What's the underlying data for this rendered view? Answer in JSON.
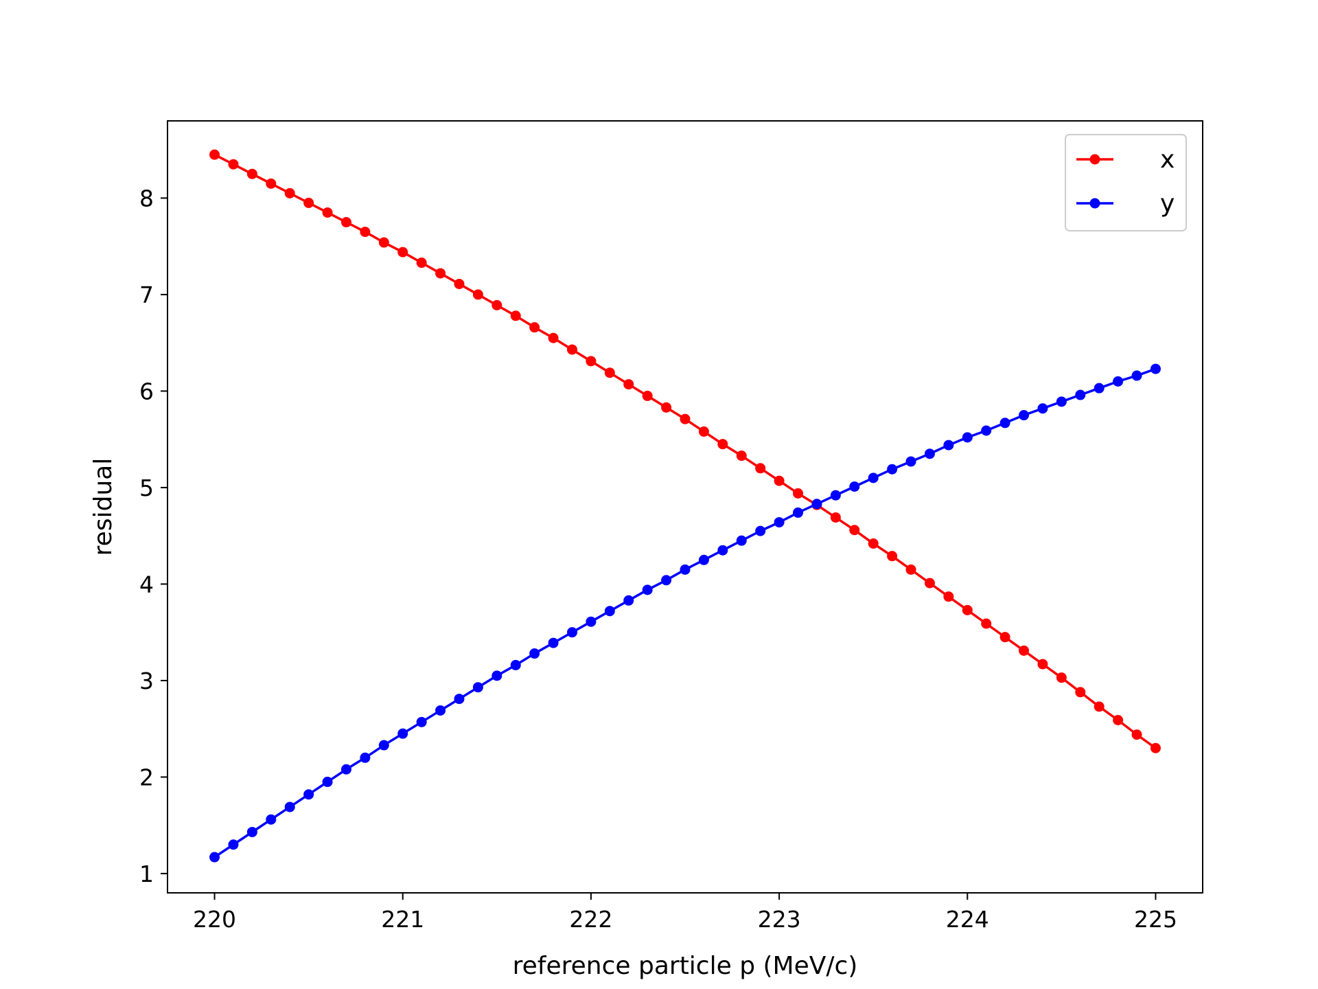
{
  "chart_data": {
    "type": "line",
    "title": "",
    "xlabel": "reference particle p (MeV/c)",
    "ylabel": "residual",
    "xlim": [
      219.75,
      225.25
    ],
    "ylim": [
      0.8,
      8.8
    ],
    "xticks": [
      220,
      221,
      222,
      223,
      224,
      225
    ],
    "yticks": [
      1,
      2,
      3,
      4,
      5,
      6,
      7,
      8
    ],
    "grid": false,
    "legend": "top-right",
    "series": [
      {
        "name": "x",
        "color": "#ff0000",
        "marker": "circle",
        "x": [
          220.0,
          220.1,
          220.2,
          220.3,
          220.4,
          220.5,
          220.6,
          220.7,
          220.8,
          220.9,
          221.0,
          221.1,
          221.2,
          221.3,
          221.4,
          221.5,
          221.6,
          221.7,
          221.8,
          221.9,
          222.0,
          222.1,
          222.2,
          222.3,
          222.4,
          222.5,
          222.6,
          222.7,
          222.8,
          222.9,
          223.0,
          223.1,
          223.2,
          223.3,
          223.4,
          223.5,
          223.6,
          223.7,
          223.8,
          223.9,
          224.0,
          224.1,
          224.2,
          224.3,
          224.4,
          224.5,
          224.6,
          224.7,
          224.8,
          224.9,
          225.0
        ],
        "y": [
          8.45,
          8.35,
          8.25,
          8.15,
          8.05,
          7.95,
          7.85,
          7.75,
          7.65,
          7.54,
          7.44,
          7.33,
          7.22,
          7.11,
          7.0,
          6.89,
          6.78,
          6.66,
          6.55,
          6.43,
          6.31,
          6.19,
          6.07,
          5.95,
          5.83,
          5.71,
          5.58,
          5.45,
          5.33,
          5.2,
          5.07,
          4.94,
          4.82,
          4.69,
          4.56,
          4.42,
          4.29,
          4.15,
          4.01,
          3.87,
          3.73,
          3.59,
          3.45,
          3.31,
          3.17,
          3.03,
          2.88,
          2.73,
          2.59,
          2.44,
          2.3
        ]
      },
      {
        "name": "y",
        "color": "#0000ff",
        "marker": "circle",
        "x": [
          220.0,
          220.1,
          220.2,
          220.3,
          220.4,
          220.5,
          220.6,
          220.7,
          220.8,
          220.9,
          221.0,
          221.1,
          221.2,
          221.3,
          221.4,
          221.5,
          221.6,
          221.7,
          221.8,
          221.9,
          222.0,
          222.1,
          222.2,
          222.3,
          222.4,
          222.5,
          222.6,
          222.7,
          222.8,
          222.9,
          223.0,
          223.1,
          223.2,
          223.3,
          223.4,
          223.5,
          223.6,
          223.7,
          223.8,
          223.9,
          224.0,
          224.1,
          224.2,
          224.3,
          224.4,
          224.5,
          224.6,
          224.7,
          224.8,
          224.9,
          225.0
        ],
        "y": [
          1.17,
          1.3,
          1.43,
          1.56,
          1.69,
          1.82,
          1.95,
          2.08,
          2.2,
          2.33,
          2.45,
          2.57,
          2.69,
          2.81,
          2.93,
          3.05,
          3.16,
          3.28,
          3.39,
          3.5,
          3.61,
          3.72,
          3.83,
          3.94,
          4.04,
          4.15,
          4.25,
          4.35,
          4.45,
          4.55,
          4.64,
          4.74,
          4.83,
          4.92,
          5.01,
          5.1,
          5.19,
          5.27,
          5.35,
          5.44,
          5.52,
          5.59,
          5.67,
          5.75,
          5.82,
          5.89,
          5.96,
          6.03,
          6.1,
          6.16,
          6.23
        ]
      }
    ]
  }
}
